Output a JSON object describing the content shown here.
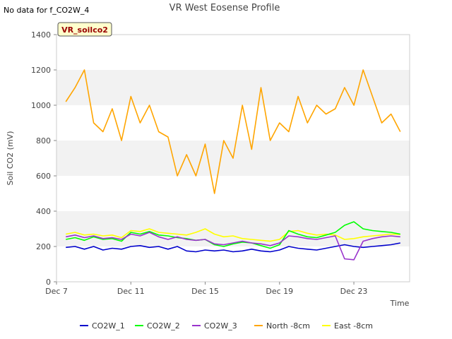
{
  "chart_data": {
    "type": "line",
    "title": "VR West Eosense Profile",
    "corner_note": "No data for f_CO2W_4",
    "site_badge": "VR_soilco2",
    "xlabel": "Time",
    "ylabel": "Soil CO2 (mV)",
    "ylim": [
      0,
      1400
    ],
    "yticks": [
      0,
      200,
      400,
      600,
      800,
      1000,
      1200,
      1400
    ],
    "xlim": [
      "2023-12-07",
      "2023-12-26"
    ],
    "xticks": [
      {
        "label": "Dec 7",
        "date": "2023-12-07"
      },
      {
        "label": "Dec 11",
        "date": "2023-12-11"
      },
      {
        "label": "Dec 15",
        "date": "2023-12-15"
      },
      {
        "label": "Dec 19",
        "date": "2023-12-19"
      },
      {
        "label": "Dec 23",
        "date": "2023-12-23"
      }
    ],
    "grid": "horizontal bands",
    "legend_position": "bottom",
    "x": [
      "2023-12-07 12:00",
      "2023-12-08 00:00",
      "2023-12-08 12:00",
      "2023-12-09 00:00",
      "2023-12-09 12:00",
      "2023-12-10 00:00",
      "2023-12-10 12:00",
      "2023-12-11 00:00",
      "2023-12-11 12:00",
      "2023-12-12 00:00",
      "2023-12-12 12:00",
      "2023-12-13 00:00",
      "2023-12-13 12:00",
      "2023-12-14 00:00",
      "2023-12-14 12:00",
      "2023-12-15 00:00",
      "2023-12-15 12:00",
      "2023-12-16 00:00",
      "2023-12-16 12:00",
      "2023-12-17 00:00",
      "2023-12-17 12:00",
      "2023-12-18 00:00",
      "2023-12-18 12:00",
      "2023-12-19 00:00",
      "2023-12-19 12:00",
      "2023-12-20 00:00",
      "2023-12-20 12:00",
      "2023-12-21 00:00",
      "2023-12-21 12:00",
      "2023-12-22 00:00",
      "2023-12-22 12:00",
      "2023-12-23 00:00",
      "2023-12-23 12:00",
      "2023-12-24 00:00",
      "2023-12-24 12:00",
      "2023-12-25 00:00",
      "2023-12-25 12:00"
    ],
    "series": [
      {
        "name": "CO2W_1",
        "color": "#0000cc",
        "values": [
          195,
          200,
          185,
          200,
          180,
          190,
          185,
          200,
          205,
          195,
          200,
          185,
          200,
          175,
          170,
          180,
          175,
          180,
          170,
          175,
          185,
          175,
          170,
          180,
          200,
          190,
          185,
          180,
          190,
          200,
          210,
          200,
          195,
          200,
          205,
          210,
          220
        ]
      },
      {
        "name": "CO2W_2",
        "color": "#00ff00",
        "values": [
          240,
          250,
          235,
          255,
          240,
          245,
          230,
          280,
          270,
          285,
          265,
          260,
          250,
          245,
          235,
          240,
          210,
          200,
          215,
          225,
          220,
          205,
          190,
          210,
          290,
          270,
          255,
          250,
          265,
          280,
          320,
          340,
          300,
          290,
          285,
          280,
          270
        ]
      },
      {
        "name": "CO2W_3",
        "color": "#9933cc",
        "values": [
          255,
          265,
          250,
          260,
          245,
          250,
          240,
          270,
          260,
          280,
          255,
          240,
          255,
          240,
          235,
          240,
          215,
          210,
          220,
          230,
          220,
          215,
          205,
          220,
          260,
          255,
          245,
          240,
          250,
          260,
          130,
          125,
          230,
          245,
          255,
          260,
          255
        ]
      },
      {
        "name": "North -8cm",
        "color": "#ffa500",
        "values": [
          1020,
          1100,
          1200,
          900,
          850,
          980,
          800,
          1050,
          900,
          1000,
          850,
          820,
          600,
          720,
          600,
          780,
          500,
          800,
          700,
          1000,
          750,
          1100,
          800,
          900,
          850,
          1050,
          900,
          1000,
          950,
          980,
          1100,
          1000,
          1200,
          1050,
          900,
          950,
          850
        ]
      },
      {
        "name": "East -8cm",
        "color": "#ffff00",
        "values": [
          270,
          280,
          265,
          270,
          260,
          265,
          250,
          290,
          285,
          300,
          280,
          275,
          270,
          265,
          280,
          300,
          270,
          255,
          260,
          245,
          240,
          235,
          230,
          240,
          285,
          290,
          275,
          265,
          270,
          265,
          240,
          245,
          255,
          260,
          265,
          270,
          268
        ]
      }
    ]
  }
}
